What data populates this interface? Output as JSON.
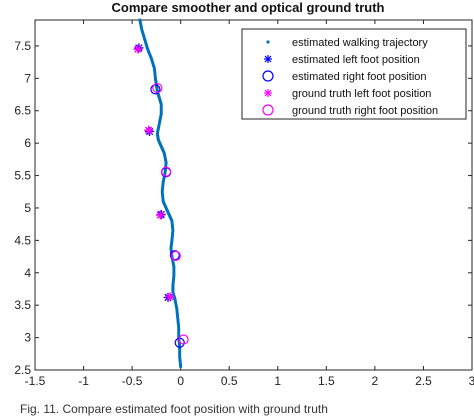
{
  "chart_data": {
    "type": "scatter",
    "title": "Compare smoother and optical ground truth",
    "xlabel": "",
    "ylabel": "",
    "xlim": [
      -1.5,
      3
    ],
    "ylim": [
      2.5,
      7.9
    ],
    "xticks": [
      "-1.5",
      "-1",
      "-0.5",
      "0",
      "0.5",
      "1",
      "1.5",
      "2",
      "2.5",
      "3"
    ],
    "yticks": [
      "2.5",
      "3",
      "3.5",
      "4",
      "4.5",
      "5",
      "5.5",
      "6",
      "6.5",
      "7",
      "7.5"
    ],
    "legend_position": "top-right",
    "series": [
      {
        "name": "estimated walking trajectory",
        "marker": "dot",
        "color": "#0072BD",
        "points": [
          [
            -0.42,
            7.9
          ],
          [
            -0.4,
            7.75
          ],
          [
            -0.37,
            7.6
          ],
          [
            -0.34,
            7.45
          ],
          [
            -0.3,
            7.3
          ],
          [
            -0.27,
            7.15
          ],
          [
            -0.26,
            7.0
          ],
          [
            -0.25,
            6.9
          ],
          [
            -0.24,
            6.8
          ],
          [
            -0.22,
            6.7
          ],
          [
            -0.2,
            6.6
          ],
          [
            -0.2,
            6.45
          ],
          [
            -0.22,
            6.3
          ],
          [
            -0.24,
            6.15
          ],
          [
            -0.23,
            6.05
          ],
          [
            -0.2,
            5.95
          ],
          [
            -0.17,
            5.85
          ],
          [
            -0.15,
            5.7
          ],
          [
            -0.16,
            5.55
          ],
          [
            -0.18,
            5.4
          ],
          [
            -0.19,
            5.25
          ],
          [
            -0.18,
            5.1
          ],
          [
            -0.15,
            5.0
          ],
          [
            -0.12,
            4.9
          ],
          [
            -0.09,
            4.8
          ],
          [
            -0.08,
            4.65
          ],
          [
            -0.09,
            4.5
          ],
          [
            -0.1,
            4.38
          ],
          [
            -0.09,
            4.25
          ],
          [
            -0.07,
            4.1
          ],
          [
            -0.07,
            3.95
          ],
          [
            -0.08,
            3.8
          ],
          [
            -0.08,
            3.7
          ],
          [
            -0.06,
            3.6
          ],
          [
            -0.04,
            3.45
          ],
          [
            -0.03,
            3.3
          ],
          [
            -0.02,
            3.15
          ],
          [
            -0.02,
            3.0
          ],
          [
            -0.01,
            2.85
          ],
          [
            -0.01,
            2.7
          ],
          [
            0.0,
            2.55
          ]
        ]
      },
      {
        "name": "estimated left foot position",
        "marker": "asterisk",
        "color": "#0000FF",
        "points": [
          [
            -0.43,
            7.47
          ],
          [
            -0.32,
            6.18
          ],
          [
            -0.2,
            4.9
          ],
          [
            -0.13,
            3.62
          ]
        ]
      },
      {
        "name": "estimated right foot position",
        "marker": "circle",
        "color": "#0000FF",
        "points": [
          [
            -0.26,
            6.83
          ],
          [
            -0.15,
            5.55
          ],
          [
            -0.06,
            4.27
          ],
          [
            -0.01,
            2.92
          ]
        ]
      },
      {
        "name": "ground truth left foot position",
        "marker": "asterisk",
        "color": "#FF00FF",
        "points": [
          [
            -0.44,
            7.45
          ],
          [
            -0.33,
            6.2
          ],
          [
            -0.21,
            4.89
          ],
          [
            -0.11,
            3.63
          ]
        ]
      },
      {
        "name": "ground truth right foot position",
        "marker": "circle",
        "color": "#FF00FF",
        "points": [
          [
            -0.24,
            6.85
          ],
          [
            -0.15,
            5.56
          ],
          [
            -0.05,
            4.26
          ],
          [
            0.03,
            2.97
          ]
        ]
      }
    ]
  },
  "caption": {
    "text": "Fig. 11. Compare estimated foot position with ground truth"
  }
}
